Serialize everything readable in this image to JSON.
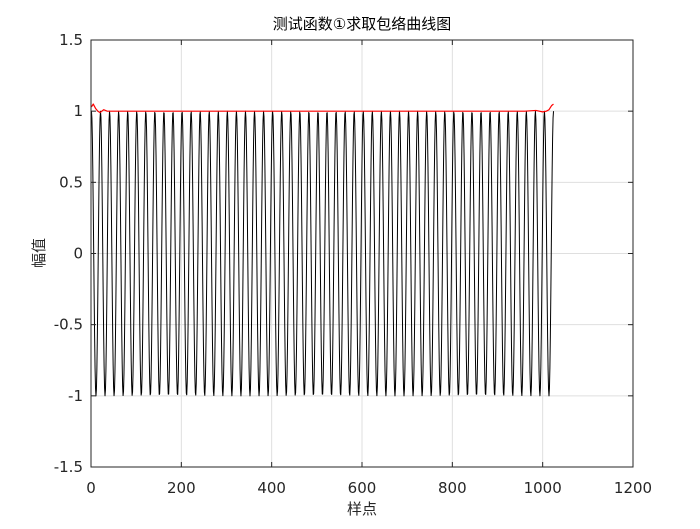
{
  "chart_data": {
    "type": "line",
    "title": "测试函数①求取包络曲线图",
    "xlabel": "样点",
    "ylabel": "幅值",
    "xlim": [
      0,
      1200
    ],
    "ylim": [
      -1.5,
      1.5
    ],
    "xticks": [
      0,
      200,
      400,
      600,
      800,
      1000,
      1200
    ],
    "xtick_labels": [
      "0",
      "200",
      "400",
      "600",
      "800",
      "1000",
      "1200"
    ],
    "yticks": [
      -1.5,
      -1,
      -0.5,
      0,
      0.5,
      1,
      1.5
    ],
    "ytick_labels": [
      "-1.5",
      "-1",
      "-0.5",
      "0",
      "0.5",
      "1",
      "1.5"
    ],
    "grid": true,
    "series": [
      {
        "role": "signal",
        "color": "#000000",
        "x_start": 1,
        "x_end": 1024,
        "cycles": 51,
        "amplitude": 1
      },
      {
        "role": "envelope",
        "color": "#ff0000",
        "x": [
          1,
          5,
          10,
          15,
          20,
          28,
          36,
          50,
          80,
          150,
          300,
          500,
          700,
          900,
          960,
          985,
          1000,
          1008,
          1014,
          1020,
          1024
        ],
        "values": [
          1.03,
          1.05,
          1.02,
          1.0,
          0.99,
          1.01,
          1.0,
          1.0,
          1.0,
          1.0,
          1.0,
          1.0,
          1.0,
          1.0,
          1.0,
          1.005,
          0.995,
          1.0,
          1.01,
          1.04,
          1.05
        ]
      }
    ]
  }
}
